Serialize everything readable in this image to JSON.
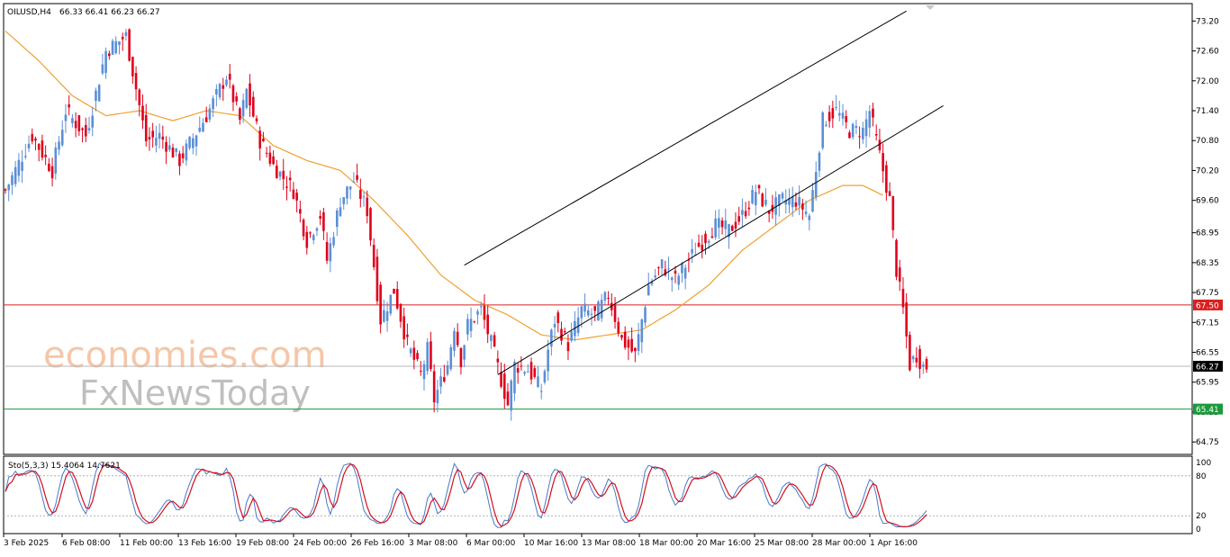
{
  "header": {
    "symbol": "OILUSD,H4",
    "ohlc": "66.33 66.41 66.23 66.27"
  },
  "watermark": {
    "line1": "economies.com",
    "line2": "FxNewsToday"
  },
  "colors": {
    "bull": "#5b8fd6",
    "bear": "#e0001a",
    "ma": "#f0a030",
    "resistance": "#d92020",
    "support": "#1a9a3a",
    "stoch_main": "#4a78c8",
    "stoch_signal": "#d01020",
    "last_price_bg": "#000000"
  },
  "stochastic": {
    "label": "Sto(5,3,3) 15.4064 14.7621",
    "levels": [
      100,
      80,
      20,
      0
    ]
  },
  "chart_data": {
    "type": "candlestick",
    "title": "OILUSD,H4",
    "ylim": [
      64.5,
      73.55
    ],
    "y_ticks": [
      "73.20",
      "72.60",
      "72.00",
      "71.40",
      "70.80",
      "70.20",
      "69.60",
      "68.95",
      "68.35",
      "67.75",
      "67.15",
      "66.55",
      "65.95",
      "65.35",
      "64.75"
    ],
    "x_ticks": [
      "3 Feb 2025",
      "6 Feb 08:00",
      "11 Feb 00:00",
      "13 Feb 16:00",
      "19 Feb 08:00",
      "24 Feb 00:00",
      "26 Feb 16:00",
      "3 Mar 08:00",
      "6 Mar 00:00",
      "10 Mar 16:00",
      "13 Mar 08:00",
      "18 Mar 00:00",
      "20 Mar 16:00",
      "25 Mar 08:00",
      "28 Mar 00:00",
      "1 Apr 16:00"
    ],
    "horizontal_lines": [
      {
        "value": 67.5,
        "label": "67.50",
        "color": "#d92020"
      },
      {
        "value": 65.41,
        "label": "65.41",
        "color": "#1a9a3a"
      }
    ],
    "last_price": {
      "value": 66.27,
      "label": "66.27"
    },
    "channel": {
      "upper": [
        {
          "x_index": 137,
          "price": 68.3
        },
        {
          "x_index": 269,
          "price": 73.4
        }
      ],
      "lower": [
        {
          "x_index": 147,
          "price": 66.1
        },
        {
          "x_index": 280,
          "price": 71.5
        }
      ]
    },
    "price_path": [
      [
        0,
        69.8
      ],
      [
        8,
        70.9
      ],
      [
        14,
        70.2
      ],
      [
        18,
        71.4
      ],
      [
        24,
        70.9
      ],
      [
        30,
        72.6
      ],
      [
        36,
        72.9
      ],
      [
        42,
        70.8
      ],
      [
        46,
        70.9
      ],
      [
        52,
        70.4
      ],
      [
        60,
        71.3
      ],
      [
        66,
        72.1
      ],
      [
        70,
        71.2
      ],
      [
        72,
        71.8
      ],
      [
        76,
        70.8
      ],
      [
        80,
        70.3
      ],
      [
        86,
        69.8
      ],
      [
        90,
        68.8
      ],
      [
        94,
        69.3
      ],
      [
        96,
        68.4
      ],
      [
        100,
        69.6
      ],
      [
        104,
        70.0
      ],
      [
        108,
        69.4
      ],
      [
        112,
        67.2
      ],
      [
        116,
        67.8
      ],
      [
        120,
        66.7
      ],
      [
        124,
        66.1
      ],
      [
        126,
        66.6
      ],
      [
        128,
        65.6
      ],
      [
        132,
        66.3
      ],
      [
        134,
        67.1
      ],
      [
        136,
        66.4
      ],
      [
        138,
        67.1
      ],
      [
        142,
        67.4
      ],
      [
        146,
        66.5
      ],
      [
        150,
        65.5
      ],
      [
        152,
        66.3
      ],
      [
        156,
        66.2
      ],
      [
        160,
        65.8
      ],
      [
        162,
        66.6
      ],
      [
        164,
        67.2
      ],
      [
        168,
        66.7
      ],
      [
        172,
        67.4
      ],
      [
        176,
        67.3
      ],
      [
        180,
        67.7
      ],
      [
        184,
        66.8
      ],
      [
        188,
        66.5
      ],
      [
        192,
        67.9
      ],
      [
        196,
        68.3
      ],
      [
        200,
        68.0
      ],
      [
        206,
        68.6
      ],
      [
        212,
        69.1
      ],
      [
        216,
        69.0
      ],
      [
        220,
        69.3
      ],
      [
        224,
        69.8
      ],
      [
        228,
        69.4
      ],
      [
        232,
        69.6
      ],
      [
        236,
        69.6
      ],
      [
        240,
        69.3
      ],
      [
        244,
        71.2
      ],
      [
        248,
        71.4
      ],
      [
        252,
        71.0
      ],
      [
        256,
        71.0
      ],
      [
        258,
        71.4
      ],
      [
        260,
        70.8
      ],
      [
        262,
        70.2
      ],
      [
        264,
        69.6
      ],
      [
        266,
        68.2
      ],
      [
        268,
        67.4
      ],
      [
        270,
        66.3
      ],
      [
        272,
        66.5
      ],
      [
        274,
        66.27
      ]
    ],
    "moving_average": [
      [
        0,
        73.0
      ],
      [
        10,
        72.4
      ],
      [
        20,
        71.7
      ],
      [
        30,
        71.3
      ],
      [
        40,
        71.4
      ],
      [
        50,
        71.2
      ],
      [
        60,
        71.4
      ],
      [
        70,
        71.3
      ],
      [
        80,
        70.7
      ],
      [
        90,
        70.4
      ],
      [
        100,
        70.2
      ],
      [
        110,
        69.6
      ],
      [
        120,
        68.9
      ],
      [
        130,
        68.1
      ],
      [
        140,
        67.6
      ],
      [
        150,
        67.3
      ],
      [
        160,
        66.9
      ],
      [
        170,
        66.8
      ],
      [
        180,
        66.9
      ],
      [
        190,
        67.0
      ],
      [
        200,
        67.4
      ],
      [
        210,
        67.9
      ],
      [
        220,
        68.6
      ],
      [
        230,
        69.1
      ],
      [
        240,
        69.6
      ],
      [
        250,
        69.9
      ],
      [
        256,
        69.9
      ],
      [
        262,
        69.7
      ]
    ]
  }
}
